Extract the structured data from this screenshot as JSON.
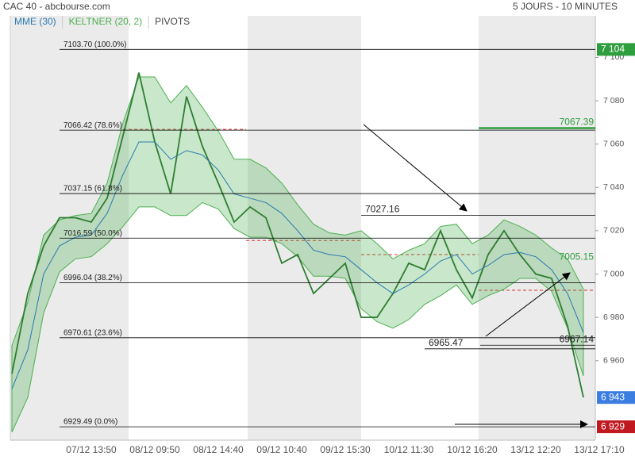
{
  "header": {
    "title": "CAC 40 - abcbourse.com",
    "period": "5 JOURS - 10 MINUTES"
  },
  "chart_data": {
    "type": "line",
    "categories": [
      null,
      null,
      null,
      null,
      null,
      "07/12 13:50",
      null,
      null,
      null,
      "08/12 09:50",
      null,
      null,
      null,
      "08/12 14:40",
      null,
      null,
      null,
      "09/12 10:40",
      null,
      null,
      null,
      "09/12 15:30",
      null,
      null,
      null,
      "10/12 11:30",
      null,
      null,
      null,
      "10/12 16:20",
      null,
      null,
      null,
      "13/12 12:20",
      null,
      null,
      null,
      "13/12 17:10"
    ],
    "series": [
      {
        "color": "#2e7d32",
        "values": [
          6954,
          6991,
          7013,
          7026,
          7026,
          7024,
          7035,
          7064,
          7093,
          7061,
          7037,
          7082,
          7059,
          7042,
          7024,
          7031,
          7026,
          7005,
          7009,
          6991,
          6998,
          7005,
          6980,
          6980,
          6991,
          7005,
          7002,
          7020,
          7002,
          6989,
          7009,
          7020,
          7009,
          7000,
          6998,
          6976,
          6943,
          null
        ]
      },
      {
        "name": "MME (30)",
        "color": "#2a78b0",
        "values": [
          6947,
          6965,
          7000,
          7013,
          7017,
          7018,
          7028,
          7046,
          7061,
          7061,
          7053,
          7057,
          7055,
          7048,
          7037,
          7035,
          7033,
          7028,
          7020,
          7011,
          7009,
          7008,
          7002,
          6996,
          6991,
          6995,
          7000,
          7006,
          7009,
          7000,
          7004,
          7009,
          7010,
          7008,
          7002,
          6991,
          6973,
          null
        ]
      },
      {
        "name": "KELTNER (20, 2)",
        "color": "#4caf50",
        "upper": [
          6967,
          6987,
          7018,
          7025,
          7027,
          7028,
          7042,
          7070,
          7091,
          7091,
          7079,
          7087,
          7077,
          7066,
          7053,
          7053,
          7049,
          7042,
          7032,
          7023,
          7019,
          7018,
          7020,
          7014,
          7007,
          7011,
          7014,
          7022,
          7023,
          7014,
          7018,
          7025,
          7022,
          7018,
          7012,
          7007,
          6993,
          null
        ],
        "lower": [
          6927,
          6943,
          6982,
          7001,
          7007,
          7008,
          7014,
          7022,
          7031,
          7031,
          7027,
          7027,
          7033,
          7030,
          7021,
          7017,
          7017,
          7014,
          7008,
          6999,
          6999,
          6998,
          6984,
          6978,
          6975,
          6979,
          6986,
          6990,
          6995,
          6986,
          6990,
          6993,
          6998,
          6998,
          6992,
          6975,
          6953,
          null
        ]
      }
    ],
    "pivots": {
      "name": "PIVOTS",
      "color": "#d32f2f",
      "values": [
        7066.8,
        7015.5,
        7009,
        6992.5
      ]
    },
    "fibonacci": [
      {
        "value": 7103.7,
        "label": "7103.70  (100.0%)"
      },
      {
        "value": 7066.42,
        "label": "7066.42  (78.6%)"
      },
      {
        "value": 7037.15,
        "label": "7037.15  (61.8%)"
      },
      {
        "value": 7016.59,
        "label": "7016.59  (50.0%)"
      },
      {
        "value": 6996.04,
        "label": "6996.04  (38.2%)"
      },
      {
        "value": 6970.61,
        "label": "6970.61  (23.6%)"
      },
      {
        "value": 6929.49,
        "label": "6929.49  (0.0%)"
      }
    ],
    "annotations": [
      7027.16,
      7067.39,
      7005.15,
      6965.47,
      6967.14
    ],
    "price_tags": [
      {
        "value": 7103.7,
        "label": "7 104",
        "color": "#2e9e3e"
      },
      {
        "value": 6943,
        "label": "6 943",
        "color": "#3b7de0"
      },
      {
        "value": 6929.49,
        "label": "6 929",
        "color": "#c0191f"
      }
    ],
    "ylim": [
      6923.3,
      7119.2
    ],
    "yticks": [
      {
        "value": 6960,
        "label": "6 960"
      },
      {
        "value": 6980,
        "label": "6 980"
      },
      {
        "value": 7000,
        "label": "7 000"
      },
      {
        "value": 7020,
        "label": "7 020"
      },
      {
        "value": 7040,
        "label": "7 040"
      },
      {
        "value": 7060,
        "label": "7 060"
      },
      {
        "value": 7080,
        "label": "7 080"
      },
      {
        "value": 7100,
        "label": "7 100"
      }
    ],
    "grid": false
  }
}
